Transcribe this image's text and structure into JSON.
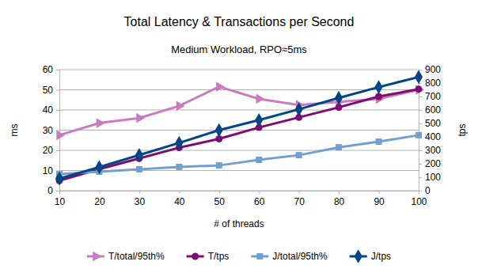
{
  "chart_data": {
    "type": "line",
    "title": "Total Latency & Transactions per Second",
    "subtitle": "Medium Workload, RPO≈5ms",
    "x_label": "# of threads",
    "y_label": "ms",
    "y2_label": "tps",
    "x": [
      10,
      20,
      30,
      40,
      50,
      60,
      70,
      80,
      90,
      100
    ],
    "xlim": [
      10,
      100
    ],
    "xticks": [
      10,
      20,
      30,
      40,
      50,
      60,
      70,
      80,
      90,
      100
    ],
    "ylim": [
      0,
      60
    ],
    "yticks": [
      0,
      10,
      20,
      30,
      40,
      50,
      60
    ],
    "y2lim": [
      0,
      900
    ],
    "y2ticks": [
      0,
      100,
      200,
      300,
      400,
      500,
      600,
      700,
      800,
      900
    ],
    "grid": true,
    "legend": "bottom",
    "series": [
      {
        "name": "T/total/95th%",
        "color": "#c77cc0",
        "marker": "triangle",
        "axis": "y",
        "values": [
          27.5,
          33.5,
          36,
          42,
          51.5,
          45.5,
          42.5,
          44,
          45.5,
          50
        ]
      },
      {
        "name": "T/tps",
        "color": "#7e0c6e",
        "marker": "circle",
        "axis": "y2",
        "values": [
          75,
          160,
          240,
          320,
          385,
          470,
          545,
          620,
          700,
          755
        ]
      },
      {
        "name": "J/total/95th%",
        "color": "#729fcf",
        "marker": "square",
        "axis": "y",
        "values": [
          8.2,
          9.4,
          10.6,
          11.8,
          12.5,
          15.3,
          17.6,
          21.5,
          24.3,
          27.5
        ]
      },
      {
        "name": "J/tps",
        "color": "#004586",
        "marker": "diamond",
        "axis": "y2",
        "values": [
          90,
          175,
          265,
          355,
          450,
          525,
          605,
          690,
          770,
          845
        ]
      }
    ]
  }
}
